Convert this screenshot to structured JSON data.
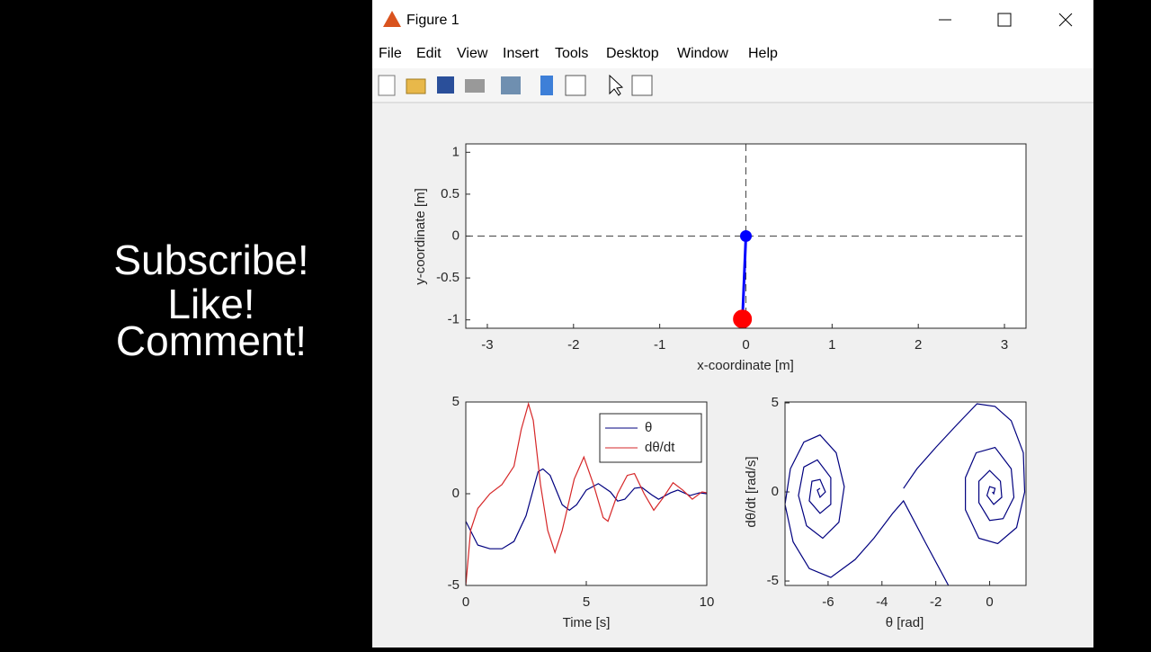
{
  "overlay": {
    "lines": [
      "Subscribe!",
      "Like!",
      "Comment!"
    ]
  },
  "window": {
    "title": "Figure 1",
    "menu": [
      "File",
      "Edit",
      "View",
      "Insert",
      "Tools",
      "Desktop",
      "Window",
      "Help"
    ]
  },
  "chart_data": [
    {
      "type": "line",
      "xlabel": "x-coordinate [m]",
      "ylabel": "y-coordinate [m]",
      "xlim": [
        -3.25,
        3.25
      ],
      "ylim": [
        -1.1,
        1.1
      ],
      "xticks": [
        -3,
        -2,
        -1,
        0,
        1,
        2,
        3
      ],
      "yticks": [
        -1,
        -0.5,
        0,
        0.5,
        1
      ],
      "hlines": [
        0
      ],
      "vlines": [
        0
      ],
      "series": [
        {
          "color": "#0000ff",
          "x": [
            0,
            -0.04
          ],
          "values": [
            0,
            -0.99
          ],
          "marker_colors": [
            "#0000ff",
            "#ff0000"
          ]
        }
      ]
    },
    {
      "type": "line",
      "xlabel": "Time [s]",
      "legend": "upper right",
      "xlim": [
        0,
        10
      ],
      "ylim": [
        -5,
        5
      ],
      "xticks": [
        0,
        5,
        10
      ],
      "yticks": [
        -5,
        0,
        5
      ],
      "series": [
        {
          "name": "θ",
          "color": "#00007f",
          "x": [
            0,
            0.5,
            1,
            1.5,
            2,
            2.5,
            3,
            3.2,
            3.5,
            4,
            4.3,
            4.6,
            5,
            5.5,
            6,
            6.3,
            6.6,
            7,
            7.3,
            7.7,
            8,
            8.5,
            8.8,
            9.3,
            9.7,
            10
          ],
          "values": [
            -1.5,
            -2.8,
            -3,
            -3,
            -2.6,
            -1.2,
            1.2,
            1.35,
            1,
            -0.6,
            -0.9,
            -0.6,
            0.2,
            0.55,
            0.1,
            -0.4,
            -0.3,
            0.3,
            0.35,
            -0.05,
            -0.3,
            0.05,
            0.2,
            -0.1,
            0.05,
            0
          ]
        },
        {
          "name": "dθ/dt",
          "color": "#d62728",
          "x": [
            0,
            0.2,
            0.5,
            1,
            1.5,
            2,
            2.3,
            2.6,
            2.8,
            3.1,
            3.4,
            3.7,
            4,
            4.5,
            4.9,
            5.3,
            5.7,
            5.9,
            6.3,
            6.7,
            7,
            7.4,
            7.8,
            8.2,
            8.6,
            9,
            9.4,
            9.8,
            10
          ],
          "values": [
            -5,
            -2,
            -0.8,
            0,
            0.5,
            1.5,
            3.5,
            4.9,
            4,
            0.5,
            -2,
            -3.2,
            -2,
            0.8,
            2,
            0.5,
            -1.3,
            -1.5,
            0,
            1,
            1.1,
            0,
            -0.9,
            -0.2,
            0.6,
            0.2,
            -0.3,
            0.1,
            0.05
          ]
        }
      ]
    },
    {
      "type": "line",
      "xlabel": "θ [rad]",
      "ylabel": "dθ/dt [rad/s]",
      "xlim": [
        -7.6,
        1.35
      ],
      "ylim": [
        -5.25,
        5.05
      ],
      "xticks": [
        -6,
        -4,
        -2,
        0
      ],
      "yticks": [
        -5,
        0,
        5
      ],
      "series": [
        {
          "color": "#00007f",
          "x": [
            -1.53,
            -2.4,
            -3.2,
            -3.6,
            -4.3,
            -5.0,
            -5.9,
            -6.7,
            -7.3,
            -7.6,
            -7.4,
            -6.9,
            -6.3,
            -5.7,
            -5.4,
            -5.6,
            -6.2,
            -6.8,
            -7.1,
            -6.9,
            -6.4,
            -5.9,
            -5.9,
            -6.3,
            -6.7,
            -6.6,
            -6.3,
            -6.1,
            -6.3,
            -6.4,
            -6.3
          ],
          "values": [
            -5.25,
            -2.8,
            -0.5,
            -1.2,
            -2.6,
            -3.8,
            -4.8,
            -4.3,
            -2.8,
            -0.7,
            1.3,
            2.8,
            3.2,
            2.2,
            0.3,
            -1.7,
            -2.6,
            -1.9,
            -0.2,
            1.4,
            1.8,
            0.8,
            -0.7,
            -1.2,
            -0.5,
            0.6,
            0.7,
            0,
            -0.3,
            0.1,
            0.2
          ]
        },
        {
          "color": "#00007f",
          "x": [
            -3.2,
            -2.7,
            -2.0,
            -1.2,
            -0.47,
            0.2,
            0.8,
            1.25,
            1.3,
            1.0,
            0.3,
            -0.4,
            -0.9,
            -0.9,
            -0.5,
            0.2,
            0.8,
            0.9,
            0.5,
            0,
            -0.4,
            -0.4,
            0,
            0.4,
            0.45,
            0.15,
            -0.1,
            0,
            0.2,
            0.15,
            0.1
          ],
          "values": [
            0.2,
            1.3,
            2.5,
            3.8,
            4.95,
            4.8,
            4.0,
            2.2,
            0,
            -2.0,
            -2.9,
            -2.6,
            -1.0,
            0.8,
            2.2,
            2.5,
            1.3,
            -0.3,
            -1.5,
            -1.6,
            -0.6,
            0.6,
            1.2,
            0.6,
            -0.3,
            -0.7,
            -0.2,
            0.3,
            0.2,
            -0.1,
            0
          ]
        }
      ]
    }
  ]
}
